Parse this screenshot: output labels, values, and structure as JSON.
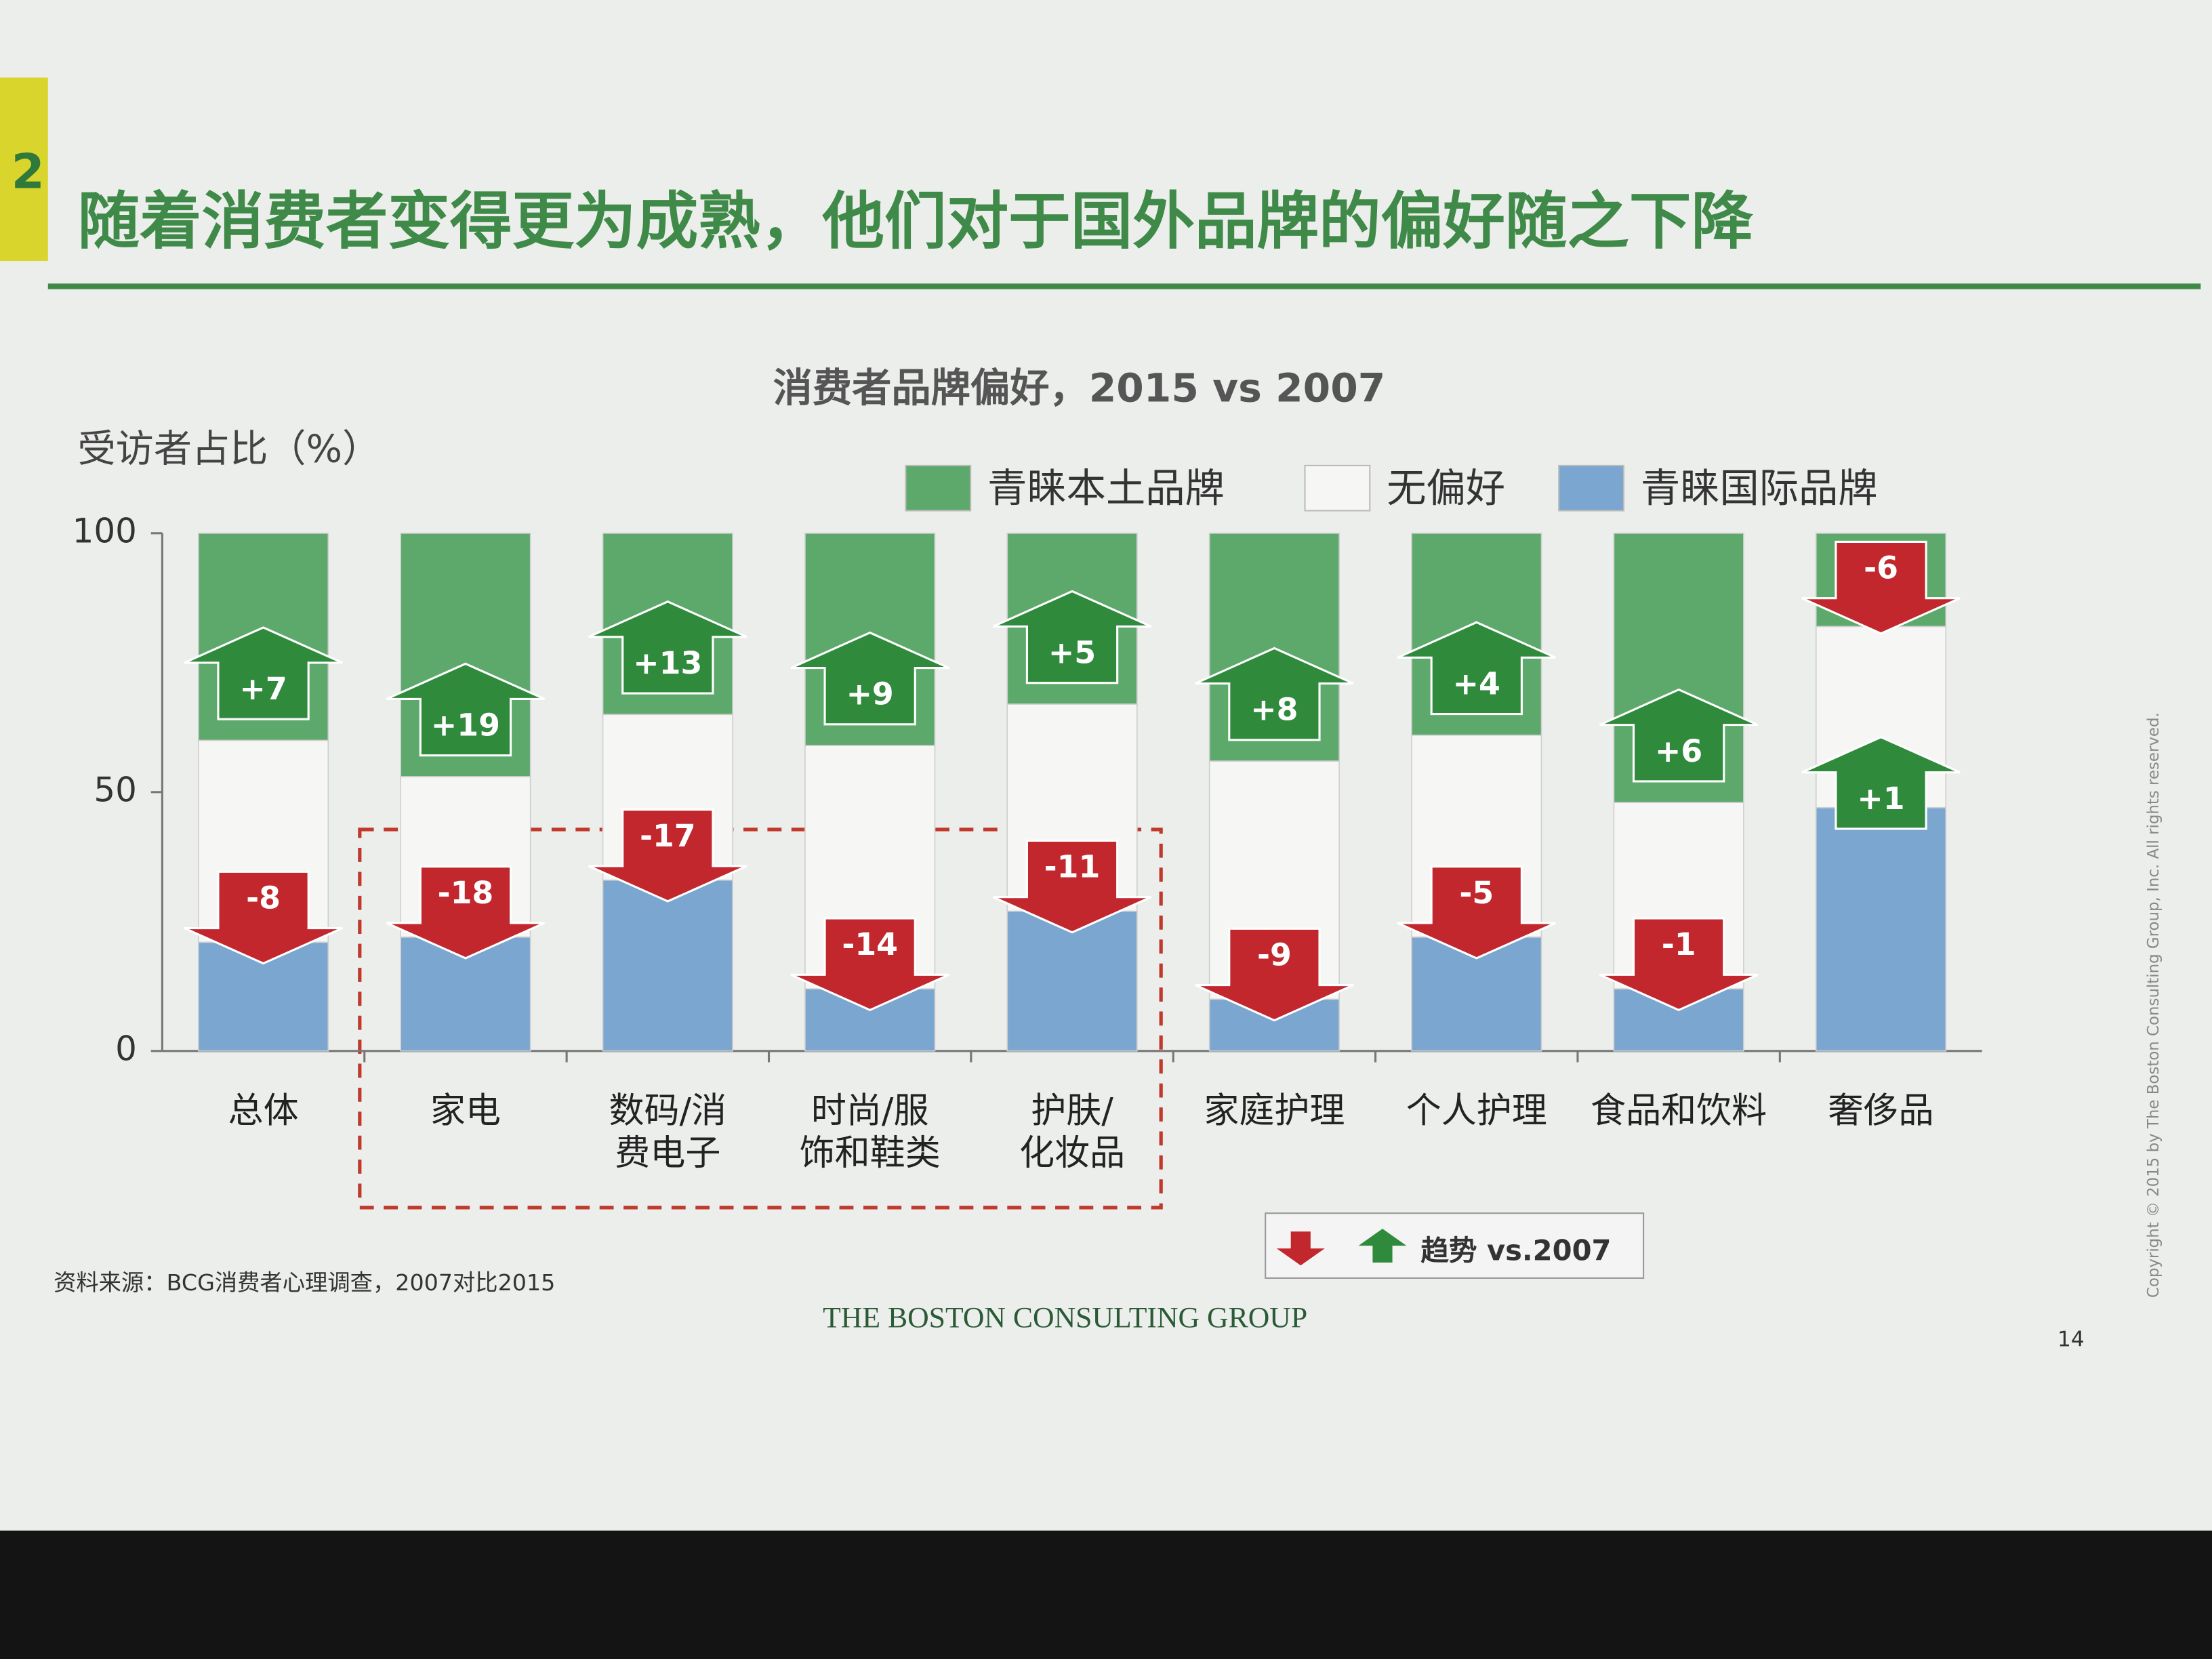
{
  "header": {
    "section": "2",
    "title": "随着消费者变得更为成熟，他们对于国外品牌的偏好随之下降"
  },
  "chart_data": {
    "type": "stacked_bar",
    "title": "消费者品牌偏好，2015 vs 2007",
    "y_label": "受访者占比（%）",
    "categories": [
      "总体",
      "家电",
      "数码/消\n费电子",
      "时尚/服\n饰和鞋类",
      "护肤/\n化妆品",
      "家庭护理",
      "个人护理",
      "食品和饮料",
      "奢侈品"
    ],
    "series": [
      {
        "name": "青睐本土品牌",
        "color": "#5da96c",
        "values": [
          40,
          47,
          35,
          41,
          33,
          44,
          39,
          52,
          18
        ]
      },
      {
        "name": "无偏好",
        "color": "#f6f6f4",
        "values": [
          39,
          31,
          32,
          47,
          40,
          46,
          39,
          36,
          35
        ]
      },
      {
        "name": "青睐国际品牌",
        "color": "#7ba6cf",
        "values": [
          21,
          22,
          33,
          12,
          27,
          10,
          22,
          12,
          47
        ]
      }
    ],
    "local_change": {
      "values": [
        7,
        19,
        13,
        9,
        5,
        8,
        4,
        6,
        -6
      ],
      "value_labels": [
        "+7",
        "+19",
        "+13",
        "+9",
        "+5",
        "+8",
        "+4",
        "+6",
        "-6"
      ]
    },
    "international_change": {
      "values": [
        -8,
        -18,
        -17,
        -14,
        -11,
        -9,
        -5,
        -1,
        1
      ],
      "value_labels": [
        "-8",
        "-18",
        "-17",
        "-14",
        "-11",
        "-9",
        "-5",
        "-1",
        "+1"
      ]
    },
    "up_color": "#2f8a3c",
    "down_color": "#c1272d",
    "trend_legend": "趋势 vs.2007",
    "ylim": [
      0,
      100
    ],
    "yticks": [
      0,
      50,
      100
    ]
  },
  "footer": {
    "source": "资料来源：BCG消费者心理调查，2007对比2015",
    "brand": "THE BOSTON CONSULTING GROUP",
    "page": "14",
    "copyright": "Copyright © 2015 by The Boston Consulting Group, Inc. All rights reserved."
  }
}
